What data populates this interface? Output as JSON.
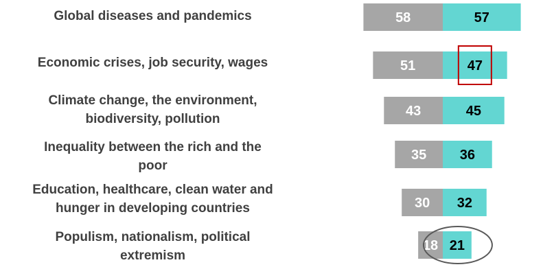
{
  "chart_data": {
    "type": "bar",
    "categories": [
      "Global diseases and pandemics",
      "Economic crises, job security, wages",
      "Climate change, the environment, biodiversity, pollution",
      "Inequality between the rich and the poor",
      "Education, healthcare, clean water and hunger in developing countries",
      "Populism, nationalism, political extremism"
    ],
    "category_lines": [
      [
        "Global diseases and pandemics"
      ],
      [
        "Economic crises, job security, wages"
      ],
      [
        "Climate change, the environment,",
        "biodiversity, pollution"
      ],
      [
        "Inequality between the rich and the",
        "poor"
      ],
      [
        "Education, healthcare, clean water and",
        "hunger in developing countries"
      ],
      [
        "Populism, nationalism, political",
        "extremism"
      ]
    ],
    "series": [
      {
        "values": [
          58,
          51,
          43,
          35,
          30,
          18
        ],
        "color": "#a6a6a6",
        "label_color": "#ffffff"
      },
      {
        "values": [
          57,
          47,
          45,
          36,
          32,
          21
        ],
        "color": "#63d6d2",
        "label_color": "#000000"
      }
    ],
    "layout": "back-to-back horizontal bars",
    "annotations": [
      {
        "shape": "rectangle",
        "target_category": "Economic crises, job security, wages",
        "target_series": 1,
        "color": "#c00000"
      },
      {
        "shape": "ellipse",
        "target_category": "Populism, nationalism, political extremism",
        "target_series": 1,
        "color": "#595959"
      }
    ]
  }
}
